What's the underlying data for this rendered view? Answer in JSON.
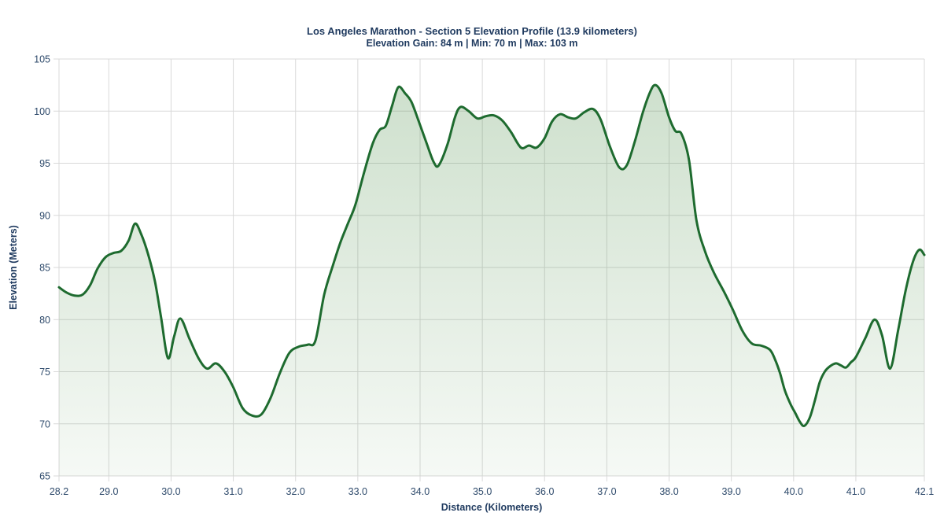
{
  "chart_data": {
    "type": "area",
    "title": "Los Angeles Marathon - Section 5 Elevation Profile (13.9 kilometers)",
    "subtitle": "Elevation Gain: 84 m | Min: 70 m | Max: 103 m",
    "xlabel": "Distance (Kilometers)",
    "ylabel": "Elevation (Meters)",
    "xlim": [
      28.2,
      42.1
    ],
    "ylim": [
      65,
      105
    ],
    "grid": true,
    "legend": false,
    "x_ticks": [
      28.2,
      29.0,
      30.0,
      31.0,
      32.0,
      33.0,
      34.0,
      35.0,
      36.0,
      37.0,
      38.0,
      39.0,
      40.0,
      41.0,
      42.1
    ],
    "x_tick_labels": [
      "28.2",
      "29.0",
      "30.0",
      "31.0",
      "32.0",
      "33.0",
      "34.0",
      "35.0",
      "36.0",
      "37.0",
      "38.0",
      "39.0",
      "40.0",
      "41.0",
      "42.1"
    ],
    "y_ticks": [
      65,
      70,
      75,
      80,
      85,
      90,
      95,
      100,
      105
    ],
    "y_tick_labels": [
      "65",
      "70",
      "75",
      "80",
      "85",
      "90",
      "95",
      "100",
      "105"
    ],
    "stats": {
      "elevation_gain_m": 84,
      "min_m": 70,
      "max_m": 103,
      "section_km": 13.9,
      "section_number": 5
    },
    "series": [
      {
        "name": "elevation-profile",
        "points": [
          [
            28.2,
            83.1
          ],
          [
            28.32,
            82.6
          ],
          [
            28.45,
            82.3
          ],
          [
            28.58,
            82.4
          ],
          [
            28.7,
            83.3
          ],
          [
            28.82,
            84.9
          ],
          [
            28.95,
            86.0
          ],
          [
            29.08,
            86.4
          ],
          [
            29.2,
            86.6
          ],
          [
            29.32,
            87.6
          ],
          [
            29.42,
            89.2
          ],
          [
            29.52,
            88.2
          ],
          [
            29.63,
            86.3
          ],
          [
            29.74,
            83.7
          ],
          [
            29.84,
            80.2
          ],
          [
            29.95,
            76.3
          ],
          [
            30.05,
            78.4
          ],
          [
            30.15,
            80.1
          ],
          [
            30.3,
            78.1
          ],
          [
            30.45,
            76.2
          ],
          [
            30.58,
            75.3
          ],
          [
            30.72,
            75.8
          ],
          [
            30.86,
            75.0
          ],
          [
            31.0,
            73.5
          ],
          [
            31.15,
            71.5
          ],
          [
            31.3,
            70.8
          ],
          [
            31.45,
            70.9
          ],
          [
            31.6,
            72.5
          ],
          [
            31.75,
            74.9
          ],
          [
            31.9,
            76.8
          ],
          [
            32.05,
            77.4
          ],
          [
            32.2,
            77.6
          ],
          [
            32.32,
            78.0
          ],
          [
            32.46,
            82.4
          ],
          [
            32.6,
            85.2
          ],
          [
            32.72,
            87.4
          ],
          [
            32.84,
            89.2
          ],
          [
            32.96,
            91.0
          ],
          [
            33.1,
            94.1
          ],
          [
            33.24,
            96.9
          ],
          [
            33.35,
            98.2
          ],
          [
            33.45,
            98.6
          ],
          [
            33.55,
            100.5
          ],
          [
            33.65,
            102.3
          ],
          [
            33.76,
            101.7
          ],
          [
            33.86,
            100.9
          ],
          [
            33.98,
            99.0
          ],
          [
            34.1,
            97.0
          ],
          [
            34.22,
            95.1
          ],
          [
            34.3,
            94.8
          ],
          [
            34.44,
            96.8
          ],
          [
            34.56,
            99.4
          ],
          [
            34.65,
            100.4
          ],
          [
            34.78,
            100.0
          ],
          [
            34.92,
            99.3
          ],
          [
            35.05,
            99.5
          ],
          [
            35.18,
            99.6
          ],
          [
            35.32,
            99.1
          ],
          [
            35.46,
            98.0
          ],
          [
            35.62,
            96.5
          ],
          [
            35.75,
            96.7
          ],
          [
            35.87,
            96.5
          ],
          [
            36.0,
            97.4
          ],
          [
            36.12,
            99.0
          ],
          [
            36.25,
            99.7
          ],
          [
            36.38,
            99.4
          ],
          [
            36.5,
            99.3
          ],
          [
            36.64,
            99.9
          ],
          [
            36.78,
            100.2
          ],
          [
            36.9,
            99.2
          ],
          [
            37.05,
            96.6
          ],
          [
            37.2,
            94.6
          ],
          [
            37.32,
            94.8
          ],
          [
            37.45,
            97.1
          ],
          [
            37.58,
            99.9
          ],
          [
            37.7,
            101.9
          ],
          [
            37.78,
            102.5
          ],
          [
            37.88,
            101.7
          ],
          [
            38.0,
            99.4
          ],
          [
            38.1,
            98.1
          ],
          [
            38.2,
            97.8
          ],
          [
            38.32,
            95.3
          ],
          [
            38.44,
            89.5
          ],
          [
            38.58,
            86.5
          ],
          [
            38.72,
            84.5
          ],
          [
            38.88,
            82.7
          ],
          [
            39.02,
            81.0
          ],
          [
            39.18,
            78.9
          ],
          [
            39.33,
            77.7
          ],
          [
            39.48,
            77.5
          ],
          [
            39.62,
            77.1
          ],
          [
            39.7,
            76.2
          ],
          [
            39.78,
            74.9
          ],
          [
            39.86,
            73.2
          ],
          [
            39.95,
            71.9
          ],
          [
            40.03,
            71.0
          ],
          [
            40.1,
            70.2
          ],
          [
            40.17,
            69.8
          ],
          [
            40.26,
            70.6
          ],
          [
            40.34,
            72.2
          ],
          [
            40.42,
            74.0
          ],
          [
            40.5,
            75.0
          ],
          [
            40.58,
            75.5
          ],
          [
            40.68,
            75.8
          ],
          [
            40.76,
            75.6
          ],
          [
            40.84,
            75.4
          ],
          [
            40.92,
            75.9
          ],
          [
            41.0,
            76.4
          ],
          [
            41.15,
            78.2
          ],
          [
            41.3,
            80.0
          ],
          [
            41.42,
            78.5
          ],
          [
            41.55,
            75.3
          ],
          [
            41.68,
            79.0
          ],
          [
            41.8,
            82.8
          ],
          [
            41.92,
            85.6
          ],
          [
            42.02,
            86.7
          ],
          [
            42.1,
            86.2
          ]
        ]
      }
    ],
    "colors": {
      "line": "#1e6b2f",
      "fill_top": "rgba(70,138,66,0.28)",
      "fill_bottom": "rgba(70,138,66,0.05)",
      "grid": "#d9d9d9",
      "text": "#1f3a5f",
      "tick_text": "#2e4a6b",
      "background": "#ffffff"
    }
  }
}
